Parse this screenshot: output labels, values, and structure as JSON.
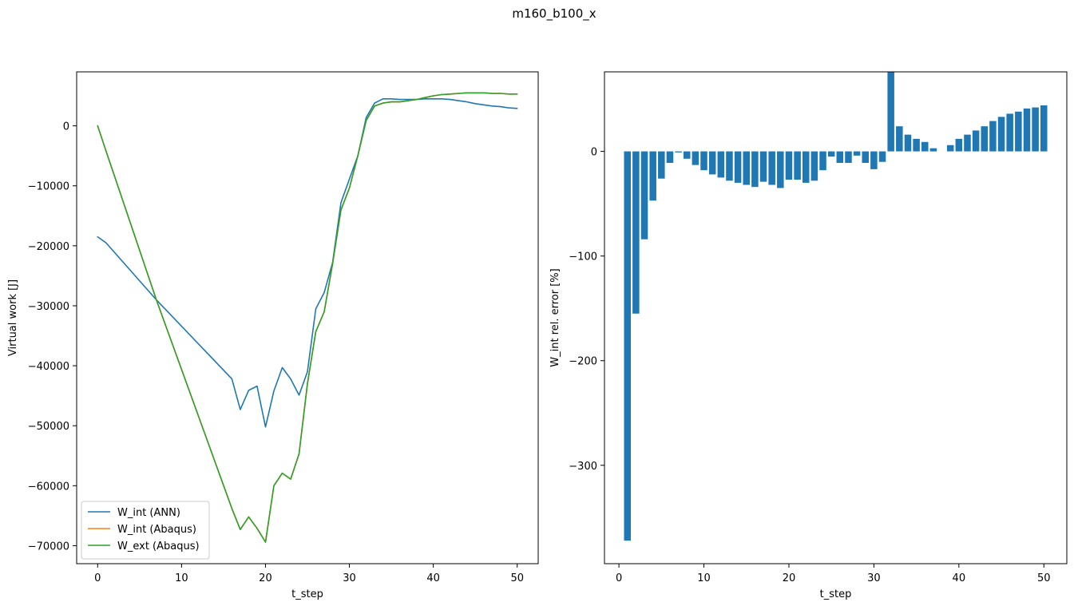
{
  "figure": {
    "suptitle": "m160_b100_x"
  },
  "colors": {
    "ann": "#1f77b4",
    "abaqus_int": "#ff7f0e",
    "abaqus_ext": "#2ca02c",
    "bar": "#1f77b4"
  },
  "chart_data": [
    {
      "type": "line",
      "xlabel": "t_step",
      "ylabel": "Virtual work [J]",
      "xlim": [
        -2.5,
        52.5
      ],
      "ylim": [
        -73000,
        9000
      ],
      "xticks": [
        0,
        10,
        20,
        30,
        40,
        50
      ],
      "xtick_labels": [
        "0",
        "10",
        "20",
        "30",
        "40",
        "50"
      ],
      "yticks": [
        0,
        -10000,
        -20000,
        -30000,
        -40000,
        -50000,
        -60000,
        -70000
      ],
      "ytick_labels": [
        "0",
        "−10000",
        "−20000",
        "−30000",
        "−40000",
        "−50000",
        "−60000",
        "−70000"
      ],
      "grid": false,
      "legend_position": "lower-left",
      "x": [
        0,
        1,
        7,
        16,
        17,
        18,
        19,
        20,
        21,
        22,
        23,
        24,
        25,
        26,
        27,
        28,
        29,
        30,
        31,
        32,
        33,
        34,
        35,
        36,
        37,
        38,
        39,
        40,
        41,
        42,
        43,
        44,
        45,
        46,
        47,
        48,
        49,
        50
      ],
      "series": [
        {
          "name": "W_int (ANN)",
          "color": "#1f77b4",
          "values": [
            -18500,
            -19500,
            -29000,
            -42200,
            -47300,
            -44100,
            -43400,
            -50200,
            -44200,
            -40300,
            -42200,
            -44900,
            -41000,
            -30500,
            -27800,
            -22800,
            -12800,
            -8900,
            -5000,
            1400,
            3800,
            4500,
            4500,
            4400,
            4400,
            4400,
            4500,
            4500,
            4500,
            4400,
            4200,
            4000,
            3700,
            3500,
            3300,
            3200,
            3000,
            2900
          ]
        },
        {
          "name": "W_int (Abaqus)",
          "color": "#ff7f0e",
          "values": [
            0,
            -4200,
            -29000,
            -63800,
            -67300,
            -65200,
            -67100,
            -69400,
            -60000,
            -57900,
            -58900,
            -54700,
            -43000,
            -34300,
            -31000,
            -23000,
            -14000,
            -10400,
            -5000,
            900,
            3300,
            3800,
            4000,
            4000,
            4200,
            4400,
            4700,
            5000,
            5200,
            5300,
            5400,
            5500,
            5500,
            5500,
            5400,
            5400,
            5300,
            5300
          ]
        },
        {
          "name": "W_ext (Abaqus)",
          "color": "#2ca02c",
          "values": [
            0,
            -4200,
            -29000,
            -63800,
            -67300,
            -65200,
            -67100,
            -69400,
            -60000,
            -57900,
            -58900,
            -54700,
            -43000,
            -34300,
            -31000,
            -23000,
            -14000,
            -10400,
            -5000,
            900,
            3300,
            3800,
            4000,
            4000,
            4200,
            4400,
            4700,
            5000,
            5200,
            5300,
            5400,
            5500,
            5500,
            5500,
            5400,
            5400,
            5300,
            5300
          ]
        }
      ]
    },
    {
      "type": "bar",
      "xlabel": "t_step",
      "ylabel": "W_int rel. error [%]",
      "xlim": [
        -1.7,
        52.7
      ],
      "ylim": [
        -394,
        76
      ],
      "xticks": [
        0,
        10,
        20,
        30,
        40,
        50
      ],
      "xtick_labels": [
        "0",
        "10",
        "20",
        "30",
        "40",
        "50"
      ],
      "yticks": [
        0,
        -100,
        -200,
        -300
      ],
      "ytick_labels": [
        "0",
        "−100",
        "−200",
        "−300"
      ],
      "grid": false,
      "categories": [
        1,
        2,
        3,
        4,
        5,
        6,
        7,
        8,
        9,
        10,
        11,
        12,
        13,
        14,
        15,
        16,
        17,
        18,
        19,
        20,
        21,
        22,
        23,
        24,
        25,
        26,
        27,
        28,
        29,
        30,
        31,
        32,
        33,
        34,
        35,
        36,
        37,
        38,
        39,
        40,
        41,
        42,
        43,
        44,
        45,
        46,
        47,
        48,
        49,
        50
      ],
      "values": [
        -372,
        -155,
        -84,
        -47,
        -26,
        -11,
        -1,
        -7,
        -13,
        -18,
        -22,
        -25,
        -28,
        -30,
        -32,
        -34,
        -29,
        -32,
        -35,
        -27,
        -27,
        -30,
        -28,
        -18,
        -5,
        -11,
        -11,
        -4,
        -11,
        -17,
        -10,
        76,
        24,
        16,
        12,
        9,
        3,
        0,
        6,
        12,
        16,
        20,
        24,
        29,
        33,
        36,
        38,
        41,
        42,
        44
      ]
    }
  ]
}
